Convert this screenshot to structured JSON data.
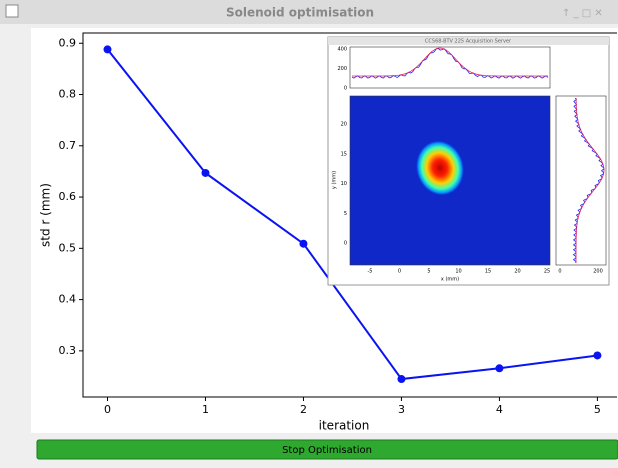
{
  "window": {
    "title": "Solenoid optimisation"
  },
  "chart_data": {
    "type": "line",
    "xlabel": "iteration",
    "ylabel": "std r (mm)",
    "x": [
      0,
      1,
      2,
      3,
      4,
      5
    ],
    "series": [
      {
        "color": "#0a14f0",
        "values": [
          0.888,
          0.647,
          0.509,
          0.245,
          0.266,
          0.291
        ]
      }
    ],
    "xlim": [
      -0.25,
      5.2
    ],
    "xticks": [
      0,
      1,
      2,
      3,
      4,
      5
    ],
    "ylim": [
      0.21,
      0.92
    ],
    "yticks": [
      0.3,
      0.4,
      0.5,
      0.6,
      0.7,
      0.8,
      0.9
    ]
  },
  "inset": {
    "title": "CCS68-BTV 225 Acquisition Server",
    "top_yticks": [
      400,
      200,
      0
    ],
    "image_xticks": [
      -5,
      0,
      5,
      10,
      15,
      20,
      25
    ],
    "image_yticks": [
      20,
      15,
      10,
      5,
      0
    ],
    "image_xlabel": "x (mm)",
    "image_ylabel": "y (mm)",
    "side_xticks": [
      0,
      200
    ]
  },
  "button": {
    "label": "Stop Optimisation"
  }
}
